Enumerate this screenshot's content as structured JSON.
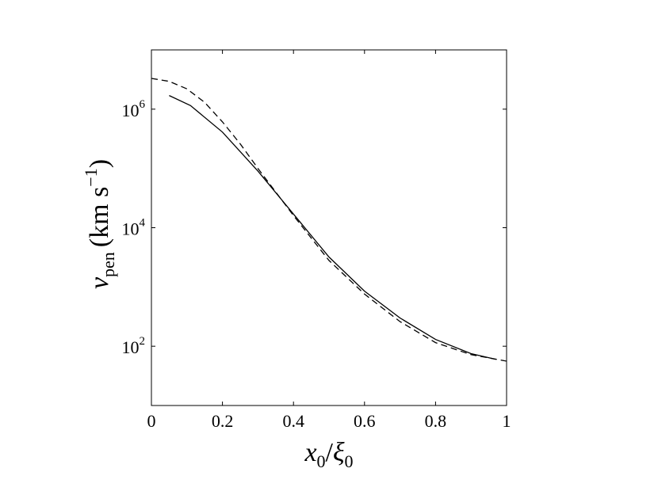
{
  "chart_data": {
    "type": "line",
    "title": "",
    "xlabel": {
      "main": "x",
      "sub1": "0",
      "sep": "/",
      "main2": "ξ",
      "sub2": "0"
    },
    "ylabel": {
      "main": "v",
      "sub": "pen",
      "units": "(km s",
      "sup": "−1",
      "close": ")"
    },
    "xlim": [
      0,
      1
    ],
    "ylim": [
      10,
      10000000
    ],
    "yscale": "log",
    "grid": false,
    "x_ticks": [
      {
        "value": 0,
        "label": "0"
      },
      {
        "value": 0.2,
        "label": "0.2"
      },
      {
        "value": 0.4,
        "label": "0.4"
      },
      {
        "value": 0.6,
        "label": "0.6"
      },
      {
        "value": 0.8,
        "label": "0.8"
      },
      {
        "value": 1,
        "label": "1"
      }
    ],
    "y_ticks": [
      {
        "value": 100,
        "base": "10",
        "exp": "2"
      },
      {
        "value": 10000,
        "base": "10",
        "exp": "4"
      },
      {
        "value": 1000000,
        "base": "10",
        "exp": "6"
      }
    ],
    "series": [
      {
        "style": "solid",
        "color": "#000000",
        "x": [
          0.05,
          0.11,
          0.2,
          0.3,
          0.4,
          0.5,
          0.6,
          0.7,
          0.8,
          0.9,
          0.97
        ],
        "y": [
          1700000,
          1150000,
          410000,
          90000,
          17000,
          3200,
          850,
          300,
          130,
          75,
          60
        ]
      },
      {
        "style": "dashed",
        "color": "#000000",
        "x": [
          0,
          0.05,
          0.1,
          0.15,
          0.2,
          0.25,
          0.3,
          0.4,
          0.5,
          0.6,
          0.7,
          0.8,
          0.9,
          1.0
        ],
        "y": [
          3300000,
          2950000,
          2200000,
          1300000,
          610000,
          260000,
          100000,
          16000,
          2800,
          760,
          260,
          115,
          72,
          56
        ]
      }
    ]
  }
}
